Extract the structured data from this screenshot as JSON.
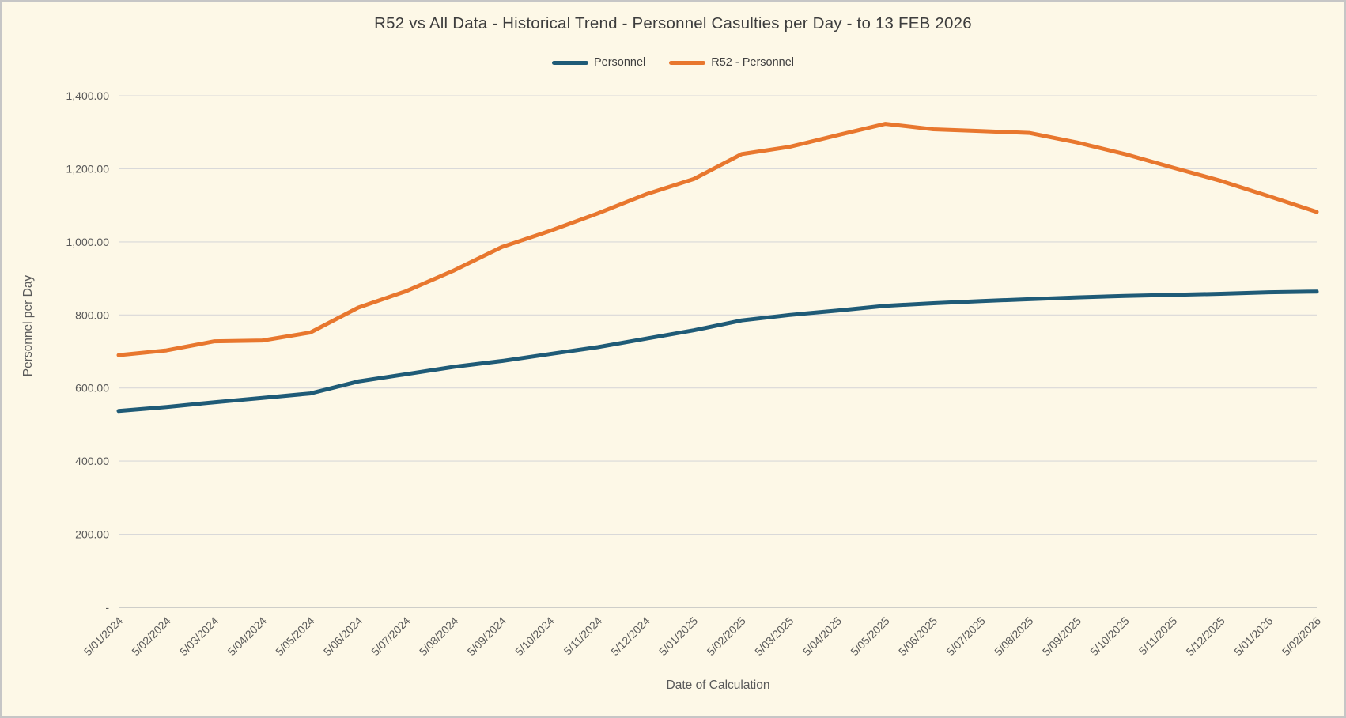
{
  "window": {
    "background_color": "#FDF8E7",
    "border_color": "#C6C6C6"
  },
  "chart_data": {
    "type": "line",
    "title": "R52 vs All Data - Historical Trend - Personnel Casulties per Day - to 13 FEB 2026",
    "xlabel": "Date of Calculation",
    "ylabel": "Personnel per Day",
    "ylim": [
      0,
      1400
    ],
    "grid": true,
    "legend_position": "top-center",
    "gridline_color": "#D9D9D9",
    "axis_line_color": "#BFBFBF",
    "tick_label_color": "#595959",
    "title_color": "#3D3D3D",
    "y_tick_values": [
      0,
      200,
      400,
      600,
      800,
      1000,
      1200,
      1400
    ],
    "y_tick_labels": [
      "-",
      "200.00",
      "400.00",
      "600.00",
      "800.00",
      "1,000.00",
      "1,200.00",
      "1,400.00"
    ],
    "categories": [
      "5/01/2024",
      "5/02/2024",
      "5/03/2024",
      "5/04/2024",
      "5/05/2024",
      "5/06/2024",
      "5/07/2024",
      "5/08/2024",
      "5/09/2024",
      "5/10/2024",
      "5/11/2024",
      "5/12/2024",
      "5/01/2025",
      "5/02/2025",
      "5/03/2025",
      "5/04/2025",
      "5/05/2025",
      "5/06/2025",
      "5/07/2025",
      "5/08/2025",
      "5/09/2025",
      "5/10/2025",
      "5/11/2025",
      "5/12/2025",
      "5/01/2026",
      "5/02/2026"
    ],
    "series": [
      {
        "name": "Personnel",
        "color": "#1F5B77",
        "values": [
          537,
          548,
          561,
          573,
          585,
          618,
          638,
          658,
          674,
          693,
          712,
          735,
          758,
          785,
          800,
          812,
          825,
          832,
          838,
          843,
          848,
          852,
          855,
          858,
          862,
          864
        ]
      },
      {
        "name": "R52 - Personnel",
        "color": "#E8772E",
        "values": [
          690,
          703,
          728,
          730,
          752,
          820,
          865,
          922,
          986,
          1030,
          1078,
          1130,
          1172,
          1240,
          1260,
          1292,
          1323,
          1308,
          1303,
          1298,
          1272,
          1240,
          1203,
          1167,
          1125,
          1082
        ]
      }
    ]
  }
}
